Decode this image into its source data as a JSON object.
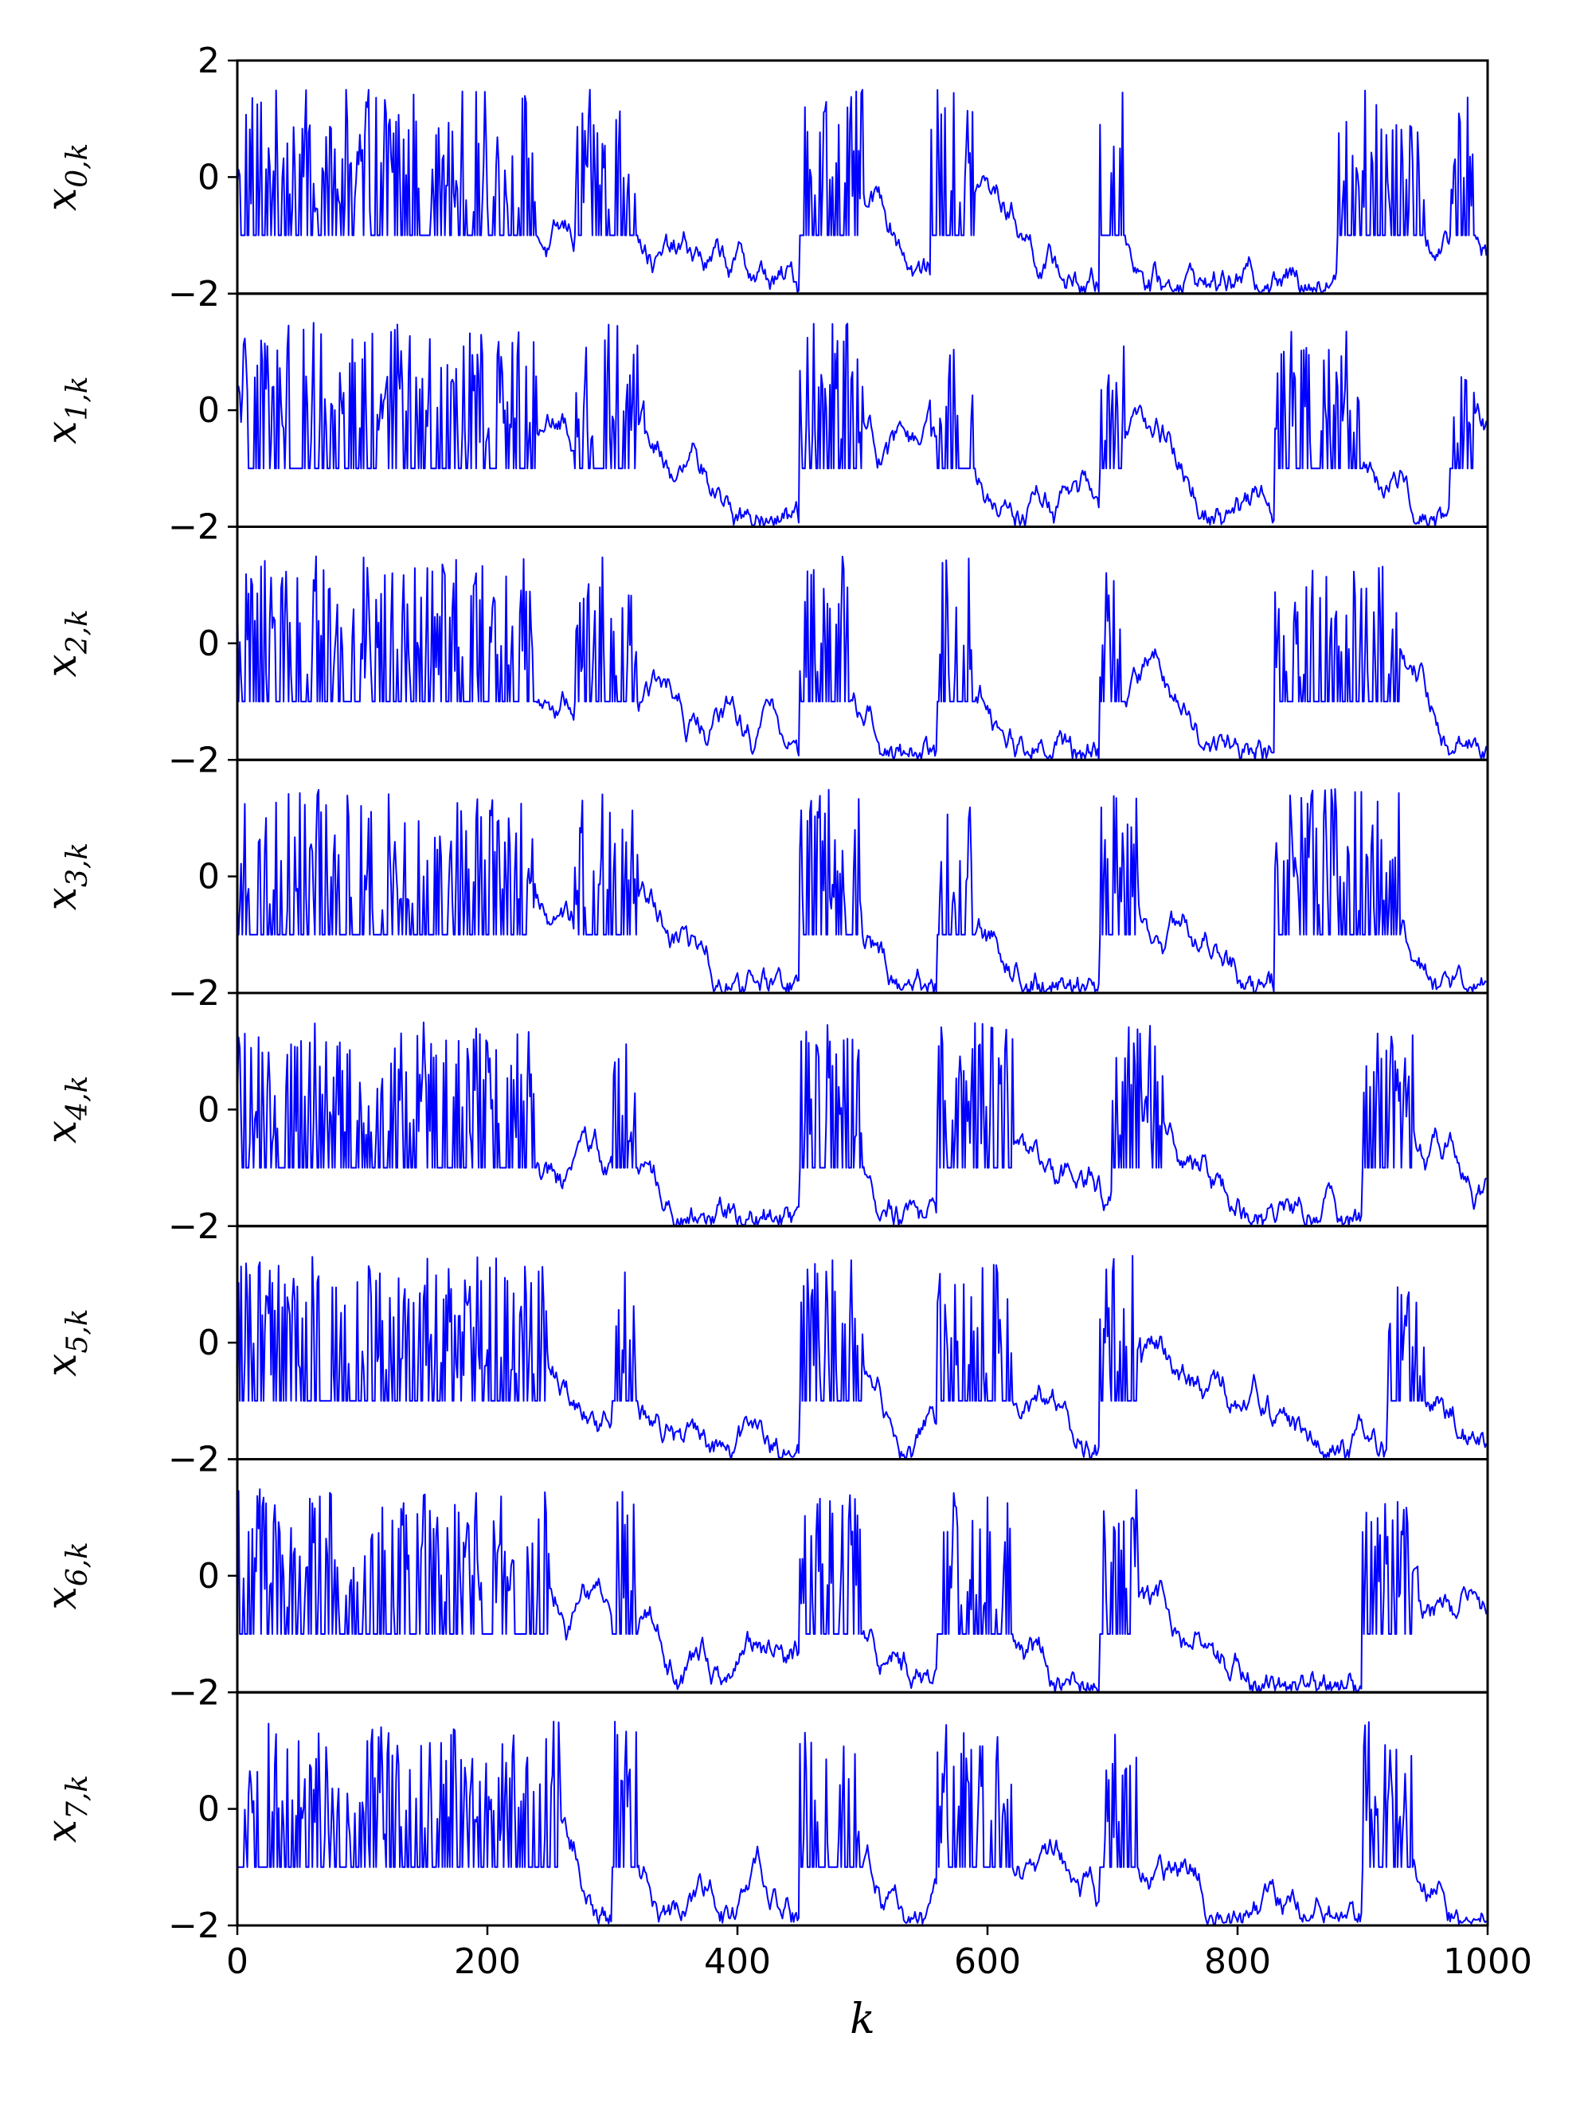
{
  "chart_data": {
    "type": "line",
    "title": "",
    "xlabel": "k",
    "xlim": [
      0,
      1000
    ],
    "x_ticks": [
      "0",
      "200",
      "400",
      "600",
      "800",
      "1000"
    ],
    "ylim": [
      -2,
      2
    ],
    "y_ticks_top_panel": [
      "2",
      "0",
      "−2"
    ],
    "y_ticks_other_panels": [
      "−2",
      "0",
      "−2"
    ],
    "line_color": "#0000ff",
    "grid": false,
    "legend": "none",
    "n_points_per_series": 1000,
    "description_of_signal": "chaotic oscillation between about -1 and 1.5 for k below 240-260, then intermittent bursts and drops toward -2",
    "series": [
      {
        "ylabel_base": "x",
        "ylabel_sub": "0,k",
        "transition_k": 240,
        "bursts": [
          [
            270,
            320
          ],
          [
            450,
            500
          ],
          [
            555,
            590
          ],
          [
            690,
            710
          ],
          [
            880,
            950
          ],
          [
            970,
            990
          ]
        ]
      },
      {
        "ylabel_base": "x",
        "ylabel_sub": "1,k",
        "transition_k": 240,
        "bursts": [
          [
            270,
            320
          ],
          [
            450,
            500
          ],
          [
            560,
            590
          ],
          [
            690,
            710
          ],
          [
            830,
            900
          ],
          [
            970,
            990
          ]
        ]
      },
      {
        "ylabel_base": "x",
        "ylabel_sub": "2,k",
        "transition_k": 240,
        "bursts": [
          [
            270,
            320
          ],
          [
            450,
            490
          ],
          [
            560,
            590
          ],
          [
            690,
            710
          ],
          [
            830,
            930
          ]
        ]
      },
      {
        "ylabel_base": "x",
        "ylabel_sub": "3,k",
        "transition_k": 240,
        "bursts": [
          [
            270,
            320
          ],
          [
            450,
            500
          ],
          [
            560,
            590
          ],
          [
            690,
            720
          ],
          [
            830,
            930
          ]
        ]
      },
      {
        "ylabel_base": "x",
        "ylabel_sub": "4,k",
        "transition_k": 240,
        "bursts": [
          [
            300,
            320
          ],
          [
            450,
            500
          ],
          [
            560,
            620
          ],
          [
            700,
            740
          ],
          [
            900,
            940
          ]
        ]
      },
      {
        "ylabel_base": "x",
        "ylabel_sub": "5,k",
        "transition_k": 250,
        "bursts": [
          [
            300,
            320
          ],
          [
            450,
            500
          ],
          [
            560,
            620
          ],
          [
            690,
            720
          ],
          [
            920,
            950
          ]
        ]
      },
      {
        "ylabel_base": "x",
        "ylabel_sub": "6,k",
        "transition_k": 250,
        "bursts": [
          [
            300,
            320
          ],
          [
            450,
            500
          ],
          [
            560,
            620
          ],
          [
            690,
            720
          ],
          [
            900,
            940
          ]
        ]
      },
      {
        "ylabel_base": "x",
        "ylabel_sub": "7,k",
        "transition_k": 260,
        "bursts": [
          [
            300,
            320
          ],
          [
            450,
            500
          ],
          [
            560,
            620
          ],
          [
            690,
            720
          ],
          [
            900,
            940
          ]
        ]
      }
    ]
  }
}
